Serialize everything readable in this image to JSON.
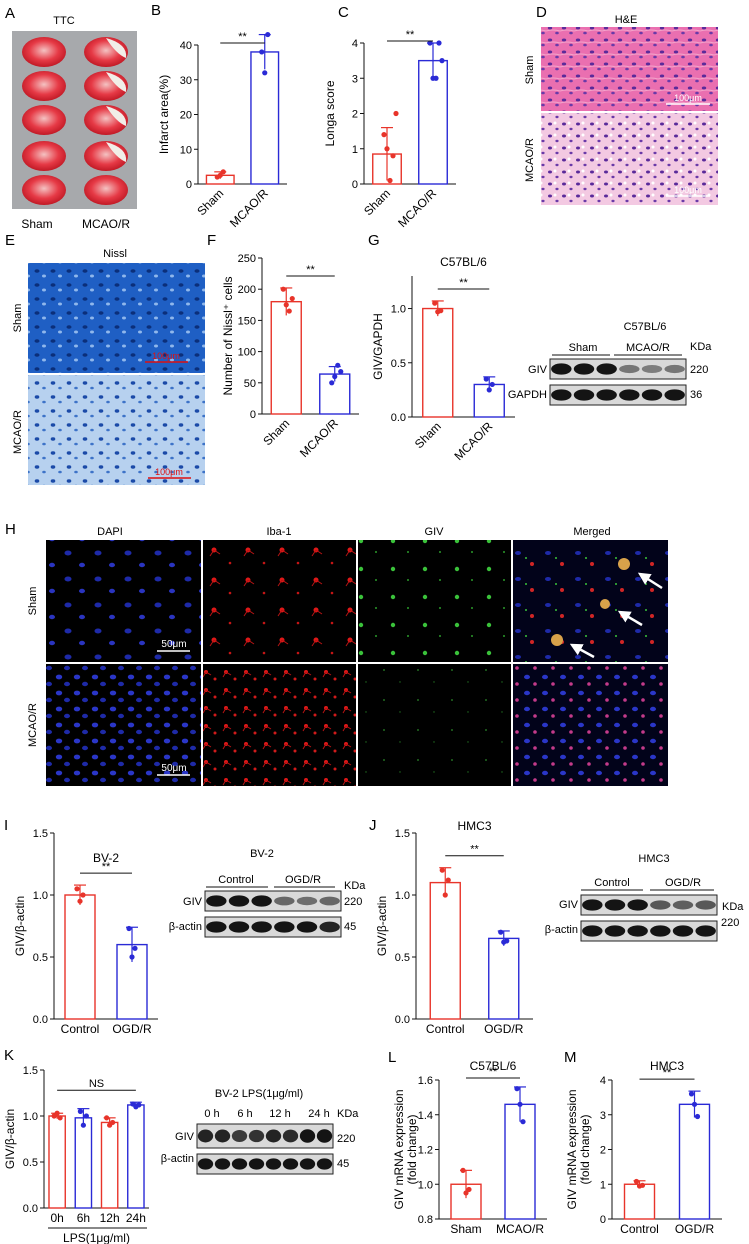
{
  "colors": {
    "red": "#e8342a",
    "blue": "#2a2ad6",
    "black": "#111111",
    "micro_blue": "#1d63c9",
    "tissue_pink": "#e04d8e"
  },
  "panels": {
    "A": {
      "letter": "A",
      "title": "TTC",
      "labels": [
        "Sham",
        "MCAO/R"
      ]
    },
    "D": {
      "letter": "D",
      "title": "H&E",
      "rows": [
        "Sham",
        "MCAO/R"
      ],
      "scale": "100μm"
    },
    "E": {
      "letter": "E",
      "title": "Nissl",
      "rows": [
        "Sham",
        "MCAO/R"
      ],
      "scale": "100μm"
    },
    "G_blot": {
      "title": "C57BL/6",
      "groups": [
        "Sham",
        "MCAO/R"
      ],
      "kda_label": "KDa",
      "proteins": [
        "GIV",
        "GAPDH"
      ],
      "kda": [
        "220",
        "36"
      ]
    },
    "H": {
      "letter": "H",
      "columns": [
        "DAPI",
        "Iba-1",
        "GIV",
        "Merged"
      ],
      "rows": [
        "Sham",
        "MCAO/R"
      ],
      "scale": "50μm"
    },
    "I_blot": {
      "title": "BV-2",
      "groups": [
        "Control",
        "OGD/R"
      ],
      "kda_label": "KDa",
      "proteins": [
        "GIV",
        "β-actin"
      ],
      "kda": [
        "220",
        "45"
      ]
    },
    "J_blot": {
      "title": "HMC3",
      "groups": [
        "Control",
        "OGD/R"
      ],
      "kda_label": "KDa",
      "proteins": [
        "GIV",
        "β-actin"
      ],
      "kda": [
        "220",
        "45"
      ]
    },
    "K_blot": {
      "title": "BV-2 LPS(1μg/ml)",
      "lanes": [
        "0 h",
        "6 h",
        "12 h",
        "24 h"
      ],
      "kda_label": "KDa",
      "proteins": [
        "GIV",
        "β-actin"
      ],
      "kda": [
        "220",
        "45"
      ]
    }
  },
  "chart_data": [
    {
      "id": "B",
      "type": "bar",
      "categories": [
        "Sham",
        "MCAO/R"
      ],
      "values": [
        2.5,
        38
      ],
      "errors": [
        1,
        5
      ],
      "points": [
        [
          2,
          2.5,
          3.5
        ],
        [
          38,
          32,
          43
        ]
      ],
      "ylabel": "Infarct area(%)",
      "ylim": [
        0,
        40
      ],
      "yticks": [
        0,
        10,
        20,
        30,
        40
      ],
      "significance": "**"
    },
    {
      "id": "C",
      "type": "bar",
      "categories": [
        "Sham",
        "MCAO/R"
      ],
      "values": [
        0.85,
        3.5
      ],
      "errors": [
        0.75,
        0.5
      ],
      "points": [
        [
          1.4,
          1.0,
          0.1,
          0.8,
          2.0
        ],
        [
          4.0,
          3.0,
          3.0,
          4.0,
          3.5
        ]
      ],
      "ylabel": "Longa score",
      "ylim": [
        0,
        4
      ],
      "yticks": [
        0,
        1,
        2,
        3,
        4
      ],
      "significance": "**"
    },
    {
      "id": "F",
      "type": "bar",
      "categories": [
        "Sham",
        "MCAO/R"
      ],
      "values": [
        180,
        64
      ],
      "errors": [
        22,
        12
      ],
      "points": [
        [
          200,
          175,
          165,
          185
        ],
        [
          50,
          60,
          78,
          68
        ]
      ],
      "ylabel": "Number of Nissl⁺ cells",
      "ylim": [
        0,
        250
      ],
      "yticks": [
        0,
        50,
        100,
        150,
        200,
        250
      ],
      "significance": "**"
    },
    {
      "id": "G",
      "type": "bar",
      "title": "C57BL/6",
      "categories": [
        "Sham",
        "MCAO/R"
      ],
      "values": [
        1.0,
        0.3
      ],
      "errors": [
        0.07,
        0.07
      ],
      "points": [
        [
          1.05,
          0.97,
          0.98
        ],
        [
          0.35,
          0.25,
          0.3
        ]
      ],
      "ylabel": "GIV/GAPDH",
      "ylim": [
        0,
        1.3
      ],
      "yticks": [
        0.0,
        0.5,
        1.0
      ],
      "significance": "**"
    },
    {
      "id": "I",
      "type": "bar",
      "title": "BV-2",
      "categories": [
        "Control",
        "OGD/R"
      ],
      "values": [
        1.0,
        0.6
      ],
      "errors": [
        0.08,
        0.14
      ],
      "points": [
        [
          1.05,
          0.95,
          1.0
        ],
        [
          0.73,
          0.5,
          0.57
        ]
      ],
      "ylabel": "GIV/β-actin",
      "ylim": [
        0,
        1.5
      ],
      "yticks": [
        0.0,
        0.5,
        1.0,
        1.5
      ],
      "significance": "**"
    },
    {
      "id": "J",
      "type": "bar",
      "title": "HMC3",
      "categories": [
        "Control",
        "OGD/R"
      ],
      "values": [
        1.1,
        0.65
      ],
      "errors": [
        0.12,
        0.06
      ],
      "points": [
        [
          1.2,
          1.0,
          1.12
        ],
        [
          0.7,
          0.62,
          0.63
        ]
      ],
      "ylabel": "GIV/β-actin",
      "ylim": [
        0,
        1.5
      ],
      "yticks": [
        0.0,
        0.5,
        1.0,
        1.5
      ],
      "significance": "**"
    },
    {
      "id": "K",
      "type": "bar",
      "categories": [
        "0h",
        "6h",
        "12h",
        "24h"
      ],
      "values": [
        1.0,
        0.98,
        0.93,
        1.12
      ],
      "errors": [
        0.03,
        0.1,
        0.05,
        0.03
      ],
      "points": [
        [
          1.0,
          1.03,
          0.98
        ],
        [
          1.05,
          0.9,
          1.0
        ],
        [
          0.98,
          0.9,
          0.93
        ],
        [
          1.13,
          1.1,
          1.12
        ]
      ],
      "ylabel": "GIV/β-actin",
      "xlabel": "LPS(1μg/ml)",
      "ylim": [
        0,
        1.5
      ],
      "yticks": [
        0.0,
        0.5,
        1.0,
        1.5
      ],
      "significance": "NS"
    },
    {
      "id": "L",
      "type": "bar",
      "title": "C57BL/6",
      "categories": [
        "Sham",
        "MCAO/R"
      ],
      "values": [
        1.0,
        1.46
      ],
      "errors": [
        0.08,
        0.1
      ],
      "points": [
        [
          1.08,
          0.95,
          0.97
        ],
        [
          1.55,
          1.46,
          1.36
        ]
      ],
      "ylabel": "GIV mRNA expression (fold change)",
      "ylim": [
        0.8,
        1.6
      ],
      "yticks": [
        0.8,
        1.0,
        1.2,
        1.4,
        1.6
      ],
      "significance": "**"
    },
    {
      "id": "M",
      "type": "bar",
      "title": "HMC3",
      "categories": [
        "Control",
        "OGD/R"
      ],
      "values": [
        1.0,
        3.3
      ],
      "errors": [
        0.1,
        0.38
      ],
      "points": [
        [
          1.08,
          0.95,
          0.97
        ],
        [
          3.6,
          3.3,
          2.95
        ]
      ],
      "ylabel": "GIV mRNA expression (fold change)",
      "ylim": [
        0,
        4
      ],
      "yticks": [
        0,
        1,
        2,
        3,
        4
      ],
      "significance": "**"
    }
  ]
}
